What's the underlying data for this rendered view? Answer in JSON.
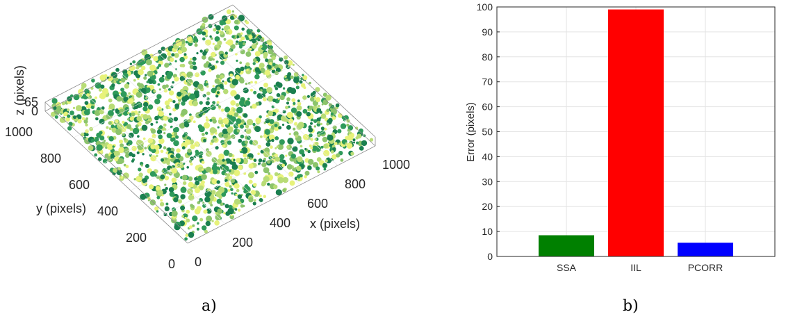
{
  "chart_data": [
    {
      "type": "scatter",
      "panel_caption": "a)",
      "xlabel": "x (pixels)",
      "ylabel": "y (pixels)",
      "zlabel": "z (pixels)",
      "xlim": [
        0,
        1000
      ],
      "ylim": [
        0,
        1000
      ],
      "zlim": [
        0,
        65
      ],
      "x_ticks": [
        "0",
        "200",
        "400",
        "600",
        "800",
        "1000"
      ],
      "y_ticks": [
        "0",
        "200",
        "400",
        "600",
        "800",
        "1000"
      ],
      "z_ticks": [
        "0",
        "65"
      ],
      "colors": [
        "#1a7f4f",
        "#2e9a5a",
        "#8cc46b",
        "#b8dc76",
        "#e7f27a"
      ]
    },
    {
      "type": "bar",
      "panel_caption": "b)",
      "categories": [
        "SSA",
        "IIL",
        "PCORR"
      ],
      "values": [
        8.5,
        99,
        5.5
      ],
      "colors": [
        "#008000",
        "#ff0000",
        "#0000ff"
      ],
      "ylabel": "Error (pixels)",
      "xlabel": "",
      "ylim": [
        0,
        100
      ],
      "y_ticks": [
        0,
        10,
        20,
        30,
        40,
        50,
        60,
        70,
        80,
        90,
        100
      ],
      "grid": true
    }
  ]
}
